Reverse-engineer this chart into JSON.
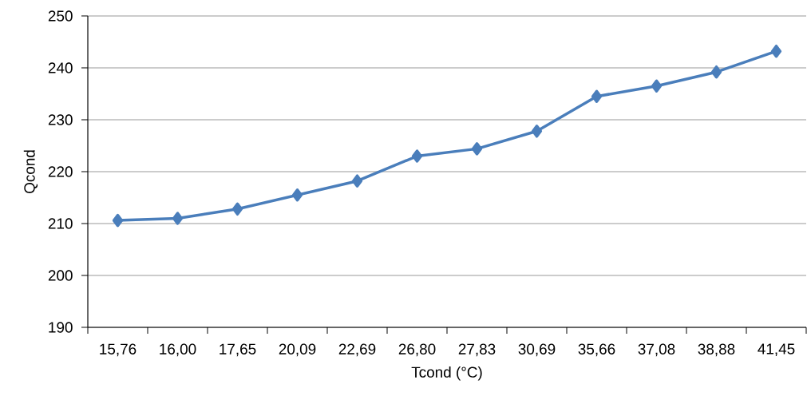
{
  "chart_data": {
    "type": "line",
    "xlabel": "Tcond (°C)",
    "ylabel": "Qcond",
    "categories": [
      "15,76",
      "16,00",
      "17,65",
      "20,09",
      "22,69",
      "26,80",
      "27,83",
      "30,69",
      "35,66",
      "37,08",
      "38,88",
      "41,45"
    ],
    "series": [
      {
        "color": "#4a7ebb",
        "values": [
          210.6,
          211.0,
          212.8,
          215.5,
          218.2,
          223.0,
          224.4,
          227.8,
          234.5,
          236.5,
          239.2,
          243.2
        ]
      }
    ],
    "ylim": [
      190,
      250
    ],
    "yticks": [
      190,
      200,
      210,
      220,
      230,
      240,
      250
    ],
    "grid": "y",
    "marker": "diamond",
    "line_style": "solid"
  }
}
